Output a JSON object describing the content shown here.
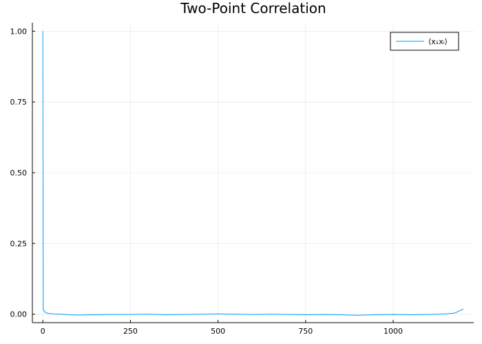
{
  "chart_data": {
    "type": "line",
    "title": "Two-Point Correlation",
    "xlabel": "",
    "ylabel": "",
    "xlim": [
      -30,
      1230
    ],
    "ylim": [
      -0.03,
      1.03
    ],
    "x_ticks": [
      0,
      250,
      500,
      750,
      1000
    ],
    "x_tick_labels": [
      "0",
      "250",
      "500",
      "750",
      "1000"
    ],
    "y_ticks": [
      0.0,
      0.25,
      0.5,
      0.75,
      1.0
    ],
    "y_tick_labels": [
      "0.00",
      "0.25",
      "0.50",
      "0.75",
      "1.00"
    ],
    "grid": true,
    "legend_position": "top-right",
    "series": [
      {
        "name": "⟨x₁xᵢ⟩",
        "color": "#009af9",
        "x": [
          0,
          1,
          2,
          3,
          5,
          8,
          12,
          20,
          30,
          50,
          75,
          100,
          150,
          200,
          250,
          300,
          350,
          400,
          450,
          500,
          550,
          600,
          650,
          700,
          750,
          800,
          850,
          900,
          950,
          1000,
          1050,
          1100,
          1130,
          1150,
          1170,
          1180,
          1190,
          1200
        ],
        "y": [
          1.0,
          0.02,
          0.015,
          0.012,
          0.008,
          0.006,
          0.004,
          0.002,
          0.001,
          0.0,
          -0.002,
          -0.003,
          -0.002,
          -0.001,
          -0.001,
          0.0,
          -0.002,
          -0.001,
          0.0,
          0.001,
          0.0,
          -0.001,
          0.0,
          -0.001,
          -0.002,
          -0.001,
          -0.002,
          -0.004,
          -0.002,
          -0.001,
          -0.002,
          -0.001,
          0.0,
          0.001,
          0.003,
          0.006,
          0.012,
          0.018
        ]
      }
    ]
  }
}
